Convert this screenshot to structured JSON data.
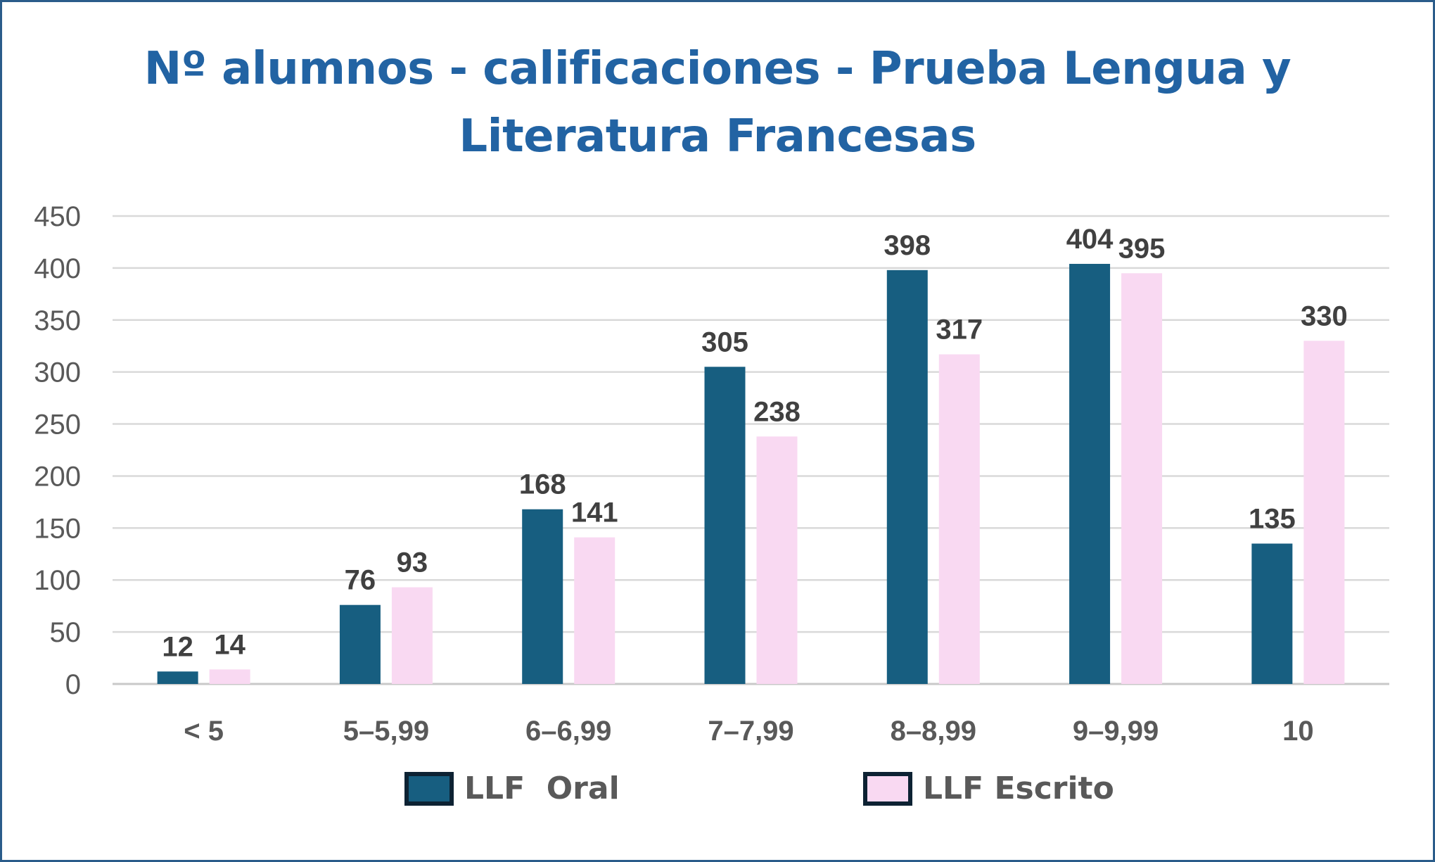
{
  "chart_data": {
    "type": "bar",
    "title": "Nº alumnos - calificaciones - Prueba Lengua y Literatura Francesas",
    "categories": [
      "< 5",
      "5–5,99",
      "6–6,99",
      "7–7,99",
      "8–8,99",
      "9–9,99",
      "10"
    ],
    "series": [
      {
        "name": "LLF  Oral",
        "color": "#175e80",
        "values": [
          12,
          76,
          168,
          305,
          398,
          404,
          135
        ]
      },
      {
        "name": "LLF Escrito",
        "color": "#f9d9f2",
        "values": [
          14,
          93,
          141,
          238,
          317,
          395,
          330
        ]
      }
    ],
    "ylim": [
      0,
      450
    ],
    "yticks": [
      0,
      50,
      100,
      150,
      200,
      250,
      300,
      350,
      400,
      450
    ],
    "grid": true,
    "legend": "bottom",
    "data_labels": true,
    "colors": {
      "title": "#2263a3",
      "grid": "#d9d9d9",
      "axis_text": "#595959",
      "label_text": "#404040",
      "legend_border": "#0d2233",
      "frame": "#2a5c8a"
    }
  }
}
